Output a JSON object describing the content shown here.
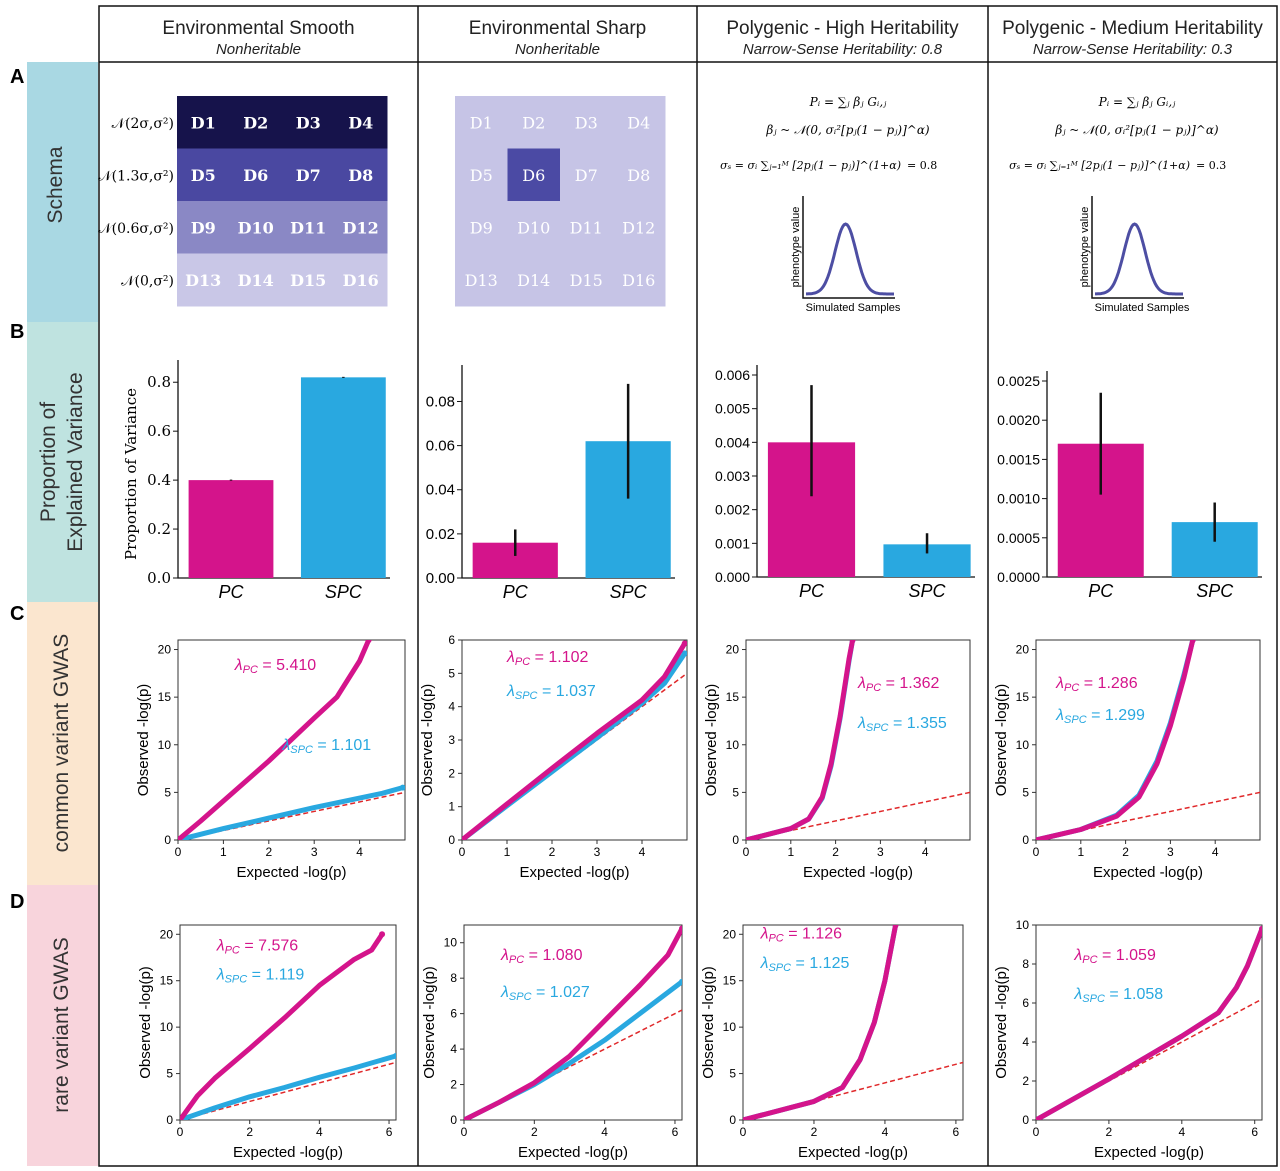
{
  "colors": {
    "pc": "#d4148b",
    "spc": "#29a8e0",
    "null": "#e0282a",
    "schema_bg": "#a9d8e3",
    "variance_bg": "#bfe3e0",
    "common_bg": "#fbe6cf",
    "rare_bg": "#f8d4dc",
    "curve": "#4d4ea3"
  },
  "row_letters": [
    "A",
    "B",
    "C",
    "D"
  ],
  "row_labels": [
    "Schema",
    "Proportion of",
    "Explained Variance",
    "common variant GWAS",
    "rare variant GWAS"
  ],
  "columns": [
    {
      "title": "Environmental Smooth",
      "subtitle": "Nonheritable"
    },
    {
      "title": "Environmental Sharp",
      "subtitle": "Nonheritable"
    },
    {
      "title": "Polygenic - High Heritability",
      "subtitle": "Narrow-Sense Heritability: 0.8"
    },
    {
      "title": "Polygenic - Medium Heritability",
      "subtitle": "Narrow-Sense Heritability: 0.3"
    }
  ],
  "schema": {
    "cells": [
      "D1",
      "D2",
      "D3",
      "D4",
      "D5",
      "D6",
      "D7",
      "D8",
      "D9",
      "D10",
      "D11",
      "D12",
      "D13",
      "D14",
      "D15",
      "D16"
    ],
    "smooth_row_labels": [
      "𝒩(2σ,σ²)",
      "𝒩(1.3σ,σ²)",
      "𝒩(0.6σ,σ²)",
      "𝒩(0,σ²)"
    ],
    "smooth_row_colors": [
      "#16134b",
      "#4a48a1",
      "#8a88c5",
      "#c9c7e7"
    ],
    "sharp_bg": "#c6c4e6",
    "sharp_highlight": "#4b4aa4",
    "sharp_highlight_cell": "D6",
    "formula_lines": [
      "Pᵢ = ∑ⱼ βⱼ Gᵢ,ⱼ",
      "βⱼ ~ 𝒩(0, σᵢ²[pⱼ(1 − pⱼ)]^α)",
      "σₛ = σᵢ ∑ⱼ₌₁ᴹ [2pⱼ(1 − pⱼ)]^(1+α)"
    ],
    "formula_values": [
      "= 0.8",
      "= 0.3"
    ],
    "curve_ylabel": "phenotype value",
    "curve_xlabel": "Simulated Samples"
  },
  "chart_data": [
    {
      "id": "b1",
      "type": "bar",
      "categories": [
        "PC",
        "SPC"
      ],
      "values": [
        0.4,
        0.82
      ],
      "errors": [
        [
          0.398,
          0.402
        ],
        [
          0.818,
          0.822
        ]
      ],
      "ylim": [
        0,
        0.85
      ],
      "yticks": [
        "0.0",
        "0.2",
        "0.4",
        "0.6",
        "0.8"
      ],
      "ytick_values": [
        0,
        0.2,
        0.4,
        0.6,
        0.8
      ],
      "ylabel": "Proportion of Variance"
    },
    {
      "id": "b2",
      "type": "bar",
      "categories": [
        "PC",
        "SPC"
      ],
      "values": [
        0.016,
        0.062
      ],
      "errors": [
        [
          0.01,
          0.022
        ],
        [
          0.036,
          0.088
        ]
      ],
      "ylim": [
        0,
        0.092
      ],
      "yticks": [
        "0.00",
        "0.02",
        "0.04",
        "0.06",
        "0.08"
      ],
      "ytick_values": [
        0,
        0.02,
        0.04,
        0.06,
        0.08
      ],
      "ylabel": ""
    },
    {
      "id": "b3",
      "type": "bar",
      "categories": [
        "PC",
        "SPC"
      ],
      "values": [
        0.004,
        0.00097
      ],
      "errors": [
        [
          0.0024,
          0.0057
        ],
        [
          0.0007,
          0.0013
        ]
      ],
      "ylim": [
        0,
        0.006
      ],
      "yticks": [
        "0.000",
        "0.001",
        "0.002",
        "0.003",
        "0.004",
        "0.005",
        "0.006"
      ],
      "ytick_values": [
        0,
        0.001,
        0.002,
        0.003,
        0.004,
        0.005,
        0.006
      ],
      "ylabel": ""
    },
    {
      "id": "b4",
      "type": "bar",
      "categories": [
        "PC",
        "SPC"
      ],
      "values": [
        0.0017,
        0.0007
      ],
      "errors": [
        [
          0.00105,
          0.00235
        ],
        [
          0.00045,
          0.00095
        ]
      ],
      "ylim": [
        0,
        0.0025
      ],
      "yticks": [
        "0.0000",
        "0.0005",
        "0.0010",
        "0.0015",
        "0.0020",
        "0.0025"
      ],
      "ytick_values": [
        0,
        0.0005,
        0.001,
        0.0015,
        0.002,
        0.0025
      ],
      "ylabel": ""
    },
    {
      "id": "c1",
      "type": "line",
      "xlabel": "Expected -log(p)",
      "ylabel": "Observed -log(p)",
      "xlim": [
        0,
        5
      ],
      "ylim": [
        0,
        21
      ],
      "xticks": [
        0,
        1,
        2,
        3,
        4
      ],
      "yticks": [
        0,
        5,
        10,
        15,
        20
      ],
      "series": [
        {
          "name": "PC",
          "lambda": "5.410",
          "points": [
            [
              0,
              0
            ],
            [
              0.5,
              2
            ],
            [
              1,
              4.1
            ],
            [
              2,
              8.3
            ],
            [
              3,
              12.8
            ],
            [
              3.5,
              15
            ],
            [
              4,
              18.8
            ],
            [
              4.2,
              21
            ]
          ]
        },
        {
          "name": "SPC",
          "lambda": "1.101",
          "points": [
            [
              0,
              0
            ],
            [
              1,
              1.2
            ],
            [
              2,
              2.3
            ],
            [
              3,
              3.4
            ],
            [
              4,
              4.4
            ],
            [
              4.5,
              4.9
            ],
            [
              4.95,
              5.5
            ]
          ]
        }
      ]
    },
    {
      "id": "c2",
      "type": "line",
      "xlabel": "Expected -log(p)",
      "ylabel": "Observed -log(p)",
      "xlim": [
        0,
        5
      ],
      "ylim": [
        0,
        6
      ],
      "xticks": [
        0,
        1,
        2,
        3,
        4
      ],
      "yticks": [
        0,
        1,
        2,
        3,
        4,
        5,
        6
      ],
      "series": [
        {
          "name": "PC",
          "lambda": "1.102",
          "points": [
            [
              0,
              0
            ],
            [
              1,
              1.08
            ],
            [
              2,
              2.15
            ],
            [
              3,
              3.2
            ],
            [
              4,
              4.2
            ],
            [
              4.5,
              4.9
            ],
            [
              4.95,
              5.9
            ]
          ]
        },
        {
          "name": "SPC",
          "lambda": "1.037",
          "points": [
            [
              0,
              0
            ],
            [
              1,
              1.03
            ],
            [
              2,
              2.05
            ],
            [
              3,
              3.07
            ],
            [
              4,
              4.1
            ],
            [
              4.5,
              4.7
            ],
            [
              4.95,
              5.6
            ]
          ]
        }
      ]
    },
    {
      "id": "c3",
      "type": "line",
      "xlabel": "Expected -log(p)",
      "ylabel": "Observed -log(p)",
      "xlim": [
        0,
        5
      ],
      "ylim": [
        0,
        21
      ],
      "xticks": [
        0,
        1,
        2,
        3,
        4
      ],
      "yticks": [
        0,
        5,
        10,
        15,
        20
      ],
      "series": [
        {
          "name": "PC",
          "lambda": "1.362",
          "points": [
            [
              0,
              0
            ],
            [
              1,
              1.2
            ],
            [
              1.4,
              2.2
            ],
            [
              1.7,
              4.5
            ],
            [
              1.9,
              8
            ],
            [
              2.1,
              13
            ],
            [
              2.3,
              19
            ],
            [
              2.38,
              21
            ]
          ]
        },
        {
          "name": "SPC",
          "lambda": "1.355",
          "points": [
            [
              0,
              0
            ],
            [
              1,
              1.2
            ],
            [
              1.4,
              2.2
            ],
            [
              1.7,
              4.4
            ],
            [
              1.9,
              7.8
            ],
            [
              2.1,
              12.8
            ],
            [
              2.3,
              18.8
            ],
            [
              2.38,
              21
            ]
          ]
        }
      ]
    },
    {
      "id": "c4",
      "type": "line",
      "xlabel": "Expected -log(p)",
      "ylabel": "Observed -log(p)",
      "xlim": [
        0,
        5
      ],
      "ylim": [
        0,
        21
      ],
      "xticks": [
        0,
        1,
        2,
        3,
        4
      ],
      "yticks": [
        0,
        5,
        10,
        15,
        20
      ],
      "series": [
        {
          "name": "PC",
          "lambda": "1.286",
          "points": [
            [
              0,
              0
            ],
            [
              1,
              1.1
            ],
            [
              1.8,
              2.5
            ],
            [
              2.3,
              4.5
            ],
            [
              2.7,
              8
            ],
            [
              3,
              12
            ],
            [
              3.3,
              17
            ],
            [
              3.5,
              21
            ]
          ]
        },
        {
          "name": "SPC",
          "lambda": "1.299",
          "points": [
            [
              0,
              0
            ],
            [
              1,
              1.1
            ],
            [
              1.8,
              2.6
            ],
            [
              2.3,
              4.7
            ],
            [
              2.7,
              8.3
            ],
            [
              3,
              12.3
            ],
            [
              3.3,
              17.3
            ],
            [
              3.5,
              21
            ]
          ]
        }
      ]
    },
    {
      "id": "d1",
      "type": "line",
      "xlabel": "Expected -log(p)",
      "ylabel": "Observed -log(p)",
      "xlim": [
        0,
        6.2
      ],
      "ylim": [
        0,
        21
      ],
      "xticks": [
        0,
        2,
        4,
        6
      ],
      "yticks": [
        0,
        5,
        10,
        15,
        20
      ],
      "series": [
        {
          "name": "PC",
          "lambda": "7.576",
          "points": [
            [
              0,
              0
            ],
            [
              0.5,
              2.6
            ],
            [
              1,
              4.5
            ],
            [
              2,
              7.7
            ],
            [
              3,
              11
            ],
            [
              4,
              14.5
            ],
            [
              5,
              17.3
            ],
            [
              5.5,
              18.3
            ],
            [
              5.8,
              20
            ]
          ]
        },
        {
          "name": "SPC",
          "lambda": "1.119",
          "points": [
            [
              0,
              0
            ],
            [
              1,
              1.3
            ],
            [
              2,
              2.5
            ],
            [
              3,
              3.5
            ],
            [
              4,
              4.6
            ],
            [
              5,
              5.6
            ],
            [
              6.2,
              6.9
            ]
          ]
        }
      ]
    },
    {
      "id": "d2",
      "type": "line",
      "xlabel": "Expected -log(p)",
      "ylabel": "Observed -log(p)",
      "xlim": [
        0,
        6.2
      ],
      "ylim": [
        0,
        11
      ],
      "xticks": [
        0,
        2,
        4,
        6
      ],
      "yticks": [
        0,
        2,
        4,
        6,
        8,
        10
      ],
      "series": [
        {
          "name": "PC",
          "lambda": "1.080",
          "points": [
            [
              0,
              0
            ],
            [
              1,
              1
            ],
            [
              2,
              2.1
            ],
            [
              3,
              3.6
            ],
            [
              4,
              5.6
            ],
            [
              5,
              7.6
            ],
            [
              5.8,
              9.3
            ],
            [
              6.2,
              10.8
            ]
          ]
        },
        {
          "name": "SPC",
          "lambda": "1.027",
          "points": [
            [
              0,
              0
            ],
            [
              1,
              1
            ],
            [
              2,
              2
            ],
            [
              3,
              3.2
            ],
            [
              4,
              4.5
            ],
            [
              5,
              6
            ],
            [
              6.2,
              7.8
            ]
          ]
        }
      ]
    },
    {
      "id": "d3",
      "type": "line",
      "xlabel": "Expected -log(p)",
      "ylabel": "Observed -log(p)",
      "xlim": [
        0,
        6.2
      ],
      "ylim": [
        0,
        21
      ],
      "xticks": [
        0,
        2,
        4,
        6
      ],
      "yticks": [
        0,
        5,
        10,
        15,
        20
      ],
      "series": [
        {
          "name": "PC",
          "lambda": "1.126",
          "points": [
            [
              0,
              0
            ],
            [
              2,
              2
            ],
            [
              2.8,
              3.5
            ],
            [
              3.3,
              6.5
            ],
            [
              3.7,
              10.5
            ],
            [
              4,
              15
            ],
            [
              4.3,
              21
            ]
          ]
        },
        {
          "name": "SPC",
          "lambda": "1.125",
          "points": [
            [
              0,
              0
            ],
            [
              2,
              2
            ],
            [
              2.8,
              3.5
            ],
            [
              3.3,
              6.5
            ],
            [
              3.7,
              10.5
            ],
            [
              4,
              15
            ],
            [
              4.3,
              21
            ]
          ]
        }
      ]
    },
    {
      "id": "d4",
      "type": "line",
      "xlabel": "Expected -log(p)",
      "ylabel": "Observed -log(p)",
      "xlim": [
        0,
        6.2
      ],
      "ylim": [
        0,
        10
      ],
      "xticks": [
        0,
        2,
        4,
        6
      ],
      "yticks": [
        0,
        2,
        4,
        6,
        8,
        10
      ],
      "series": [
        {
          "name": "PC",
          "lambda": "1.059",
          "points": [
            [
              0,
              0
            ],
            [
              2,
              2.1
            ],
            [
              4,
              4.3
            ],
            [
              5,
              5.5
            ],
            [
              5.5,
              6.8
            ],
            [
              5.8,
              7.9
            ],
            [
              6.2,
              9.8
            ]
          ]
        },
        {
          "name": "SPC",
          "lambda": "1.058",
          "points": [
            [
              0,
              0
            ],
            [
              2,
              2.1
            ],
            [
              4,
              4.3
            ],
            [
              5,
              5.5
            ],
            [
              5.5,
              6.8
            ],
            [
              5.8,
              7.9
            ],
            [
              6.2,
              9.8
            ]
          ]
        }
      ]
    }
  ]
}
